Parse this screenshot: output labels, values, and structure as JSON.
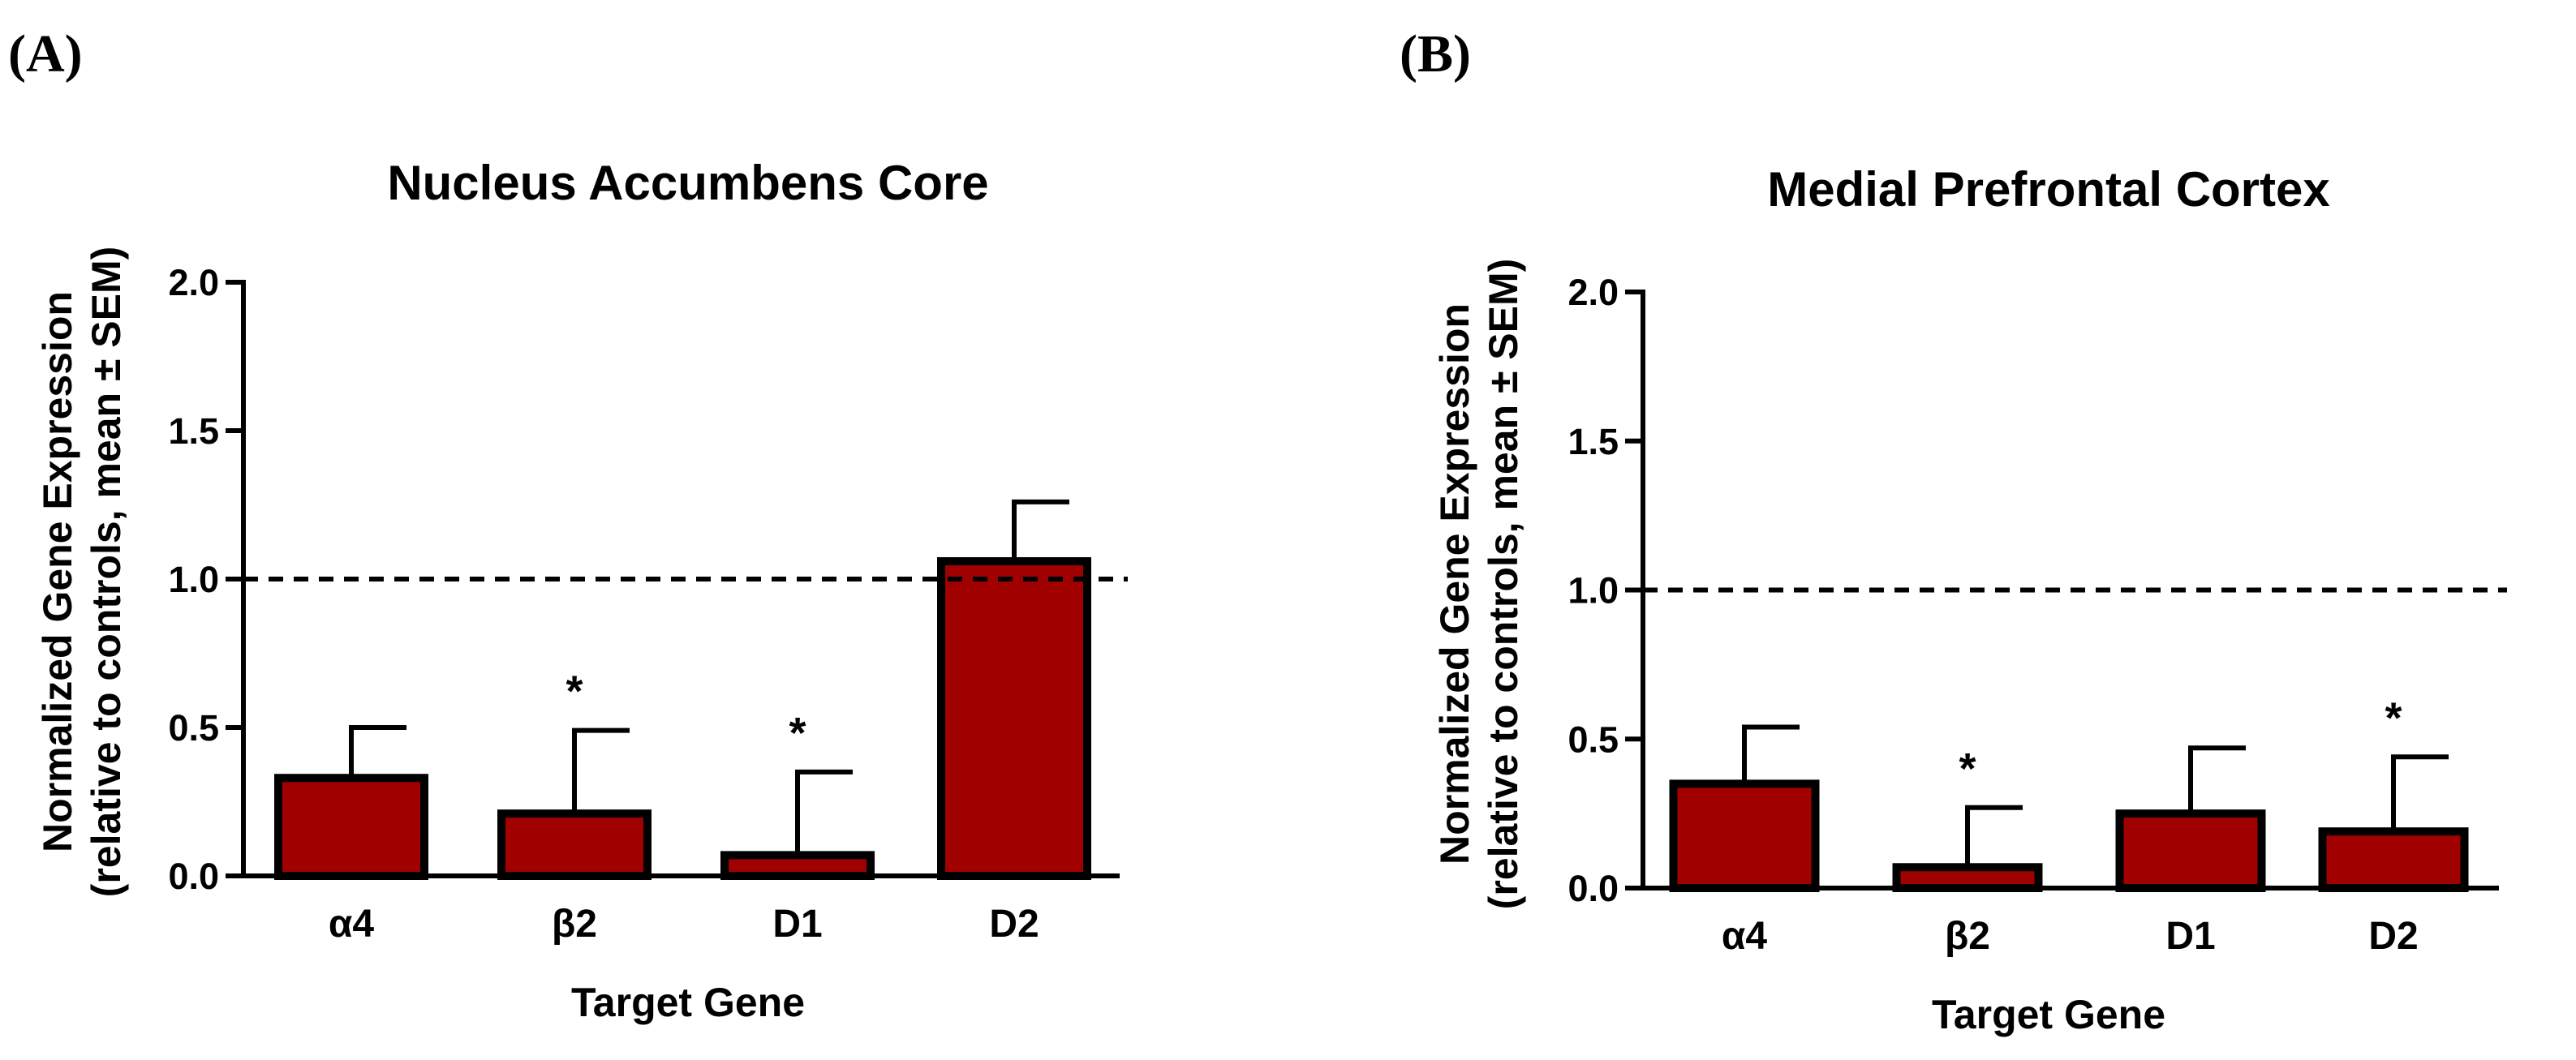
{
  "colors": {
    "bar_fill": "#a00000",
    "stroke": "#000000"
  },
  "chart_data": [
    {
      "type": "bar",
      "panel": "(A)",
      "title": "Nucleus Accumbens Core",
      "xlabel": "Target Gene",
      "ylabel_line1": "Normalized Gene Expression",
      "ylabel_line2": "(relative to controls, mean ± SEM)",
      "ylim": [
        0,
        2.0
      ],
      "yticks": [
        "0.0",
        "0.5",
        "1.0",
        "1.5",
        "2.0"
      ],
      "categories": [
        "α4",
        "β2",
        "D1",
        "D2"
      ],
      "values": [
        0.33,
        0.21,
        0.07,
        1.06
      ],
      "errors": [
        0.17,
        0.28,
        0.28,
        0.2
      ],
      "significant": [
        false,
        true,
        true,
        false
      ],
      "star_label": "*",
      "reference_line": 1.0
    },
    {
      "type": "bar",
      "panel": "(B)",
      "title": "Medial Prefrontal Cortex",
      "xlabel": "Target Gene",
      "ylabel_line1": "Normalized Gene Expression",
      "ylabel_line2": "(relative to controls, mean ± SEM)",
      "ylim": [
        0,
        2.0
      ],
      "yticks": [
        "0.0",
        "0.5",
        "1.0",
        "1.5",
        "2.0"
      ],
      "categories": [
        "α4",
        "β2",
        "D1",
        "D2"
      ],
      "values": [
        0.35,
        0.07,
        0.25,
        0.19
      ],
      "errors": [
        0.19,
        0.2,
        0.22,
        0.25
      ],
      "significant": [
        false,
        true,
        false,
        true
      ],
      "star_label": "*",
      "reference_line": 1.0
    }
  ]
}
